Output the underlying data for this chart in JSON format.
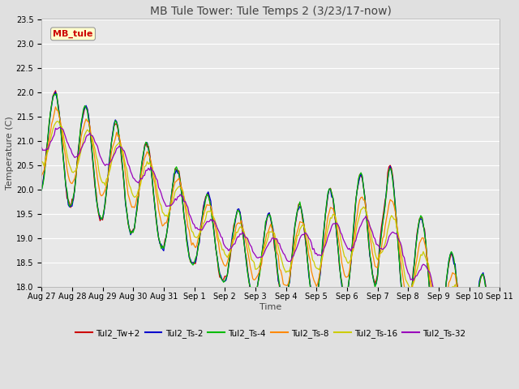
{
  "title": "MB Tule Tower: Tule Temps 2 (3/23/17-now)",
  "xlabel": "Time",
  "ylabel": "Temperature (C)",
  "ylim": [
    18.0,
    23.5
  ],
  "yticks": [
    18.0,
    18.5,
    19.0,
    19.5,
    20.0,
    20.5,
    21.0,
    21.5,
    22.0,
    22.5,
    23.0,
    23.5
  ],
  "series_colors": {
    "Tul2_Tw+2": "#cc0000",
    "Tul2_Ts-2": "#0000cc",
    "Tul2_Ts-4": "#00bb00",
    "Tul2_Ts-8": "#ff8800",
    "Tul2_Ts-16": "#cccc00",
    "Tul2_Ts-32": "#9900bb"
  },
  "watermark_text": "MB_tule",
  "watermark_color": "#cc0000",
  "background_color": "#e0e0e0",
  "plot_bg_color": "#e8e8e8",
  "grid_color": "#ffffff",
  "title_fontsize": 10,
  "axis_fontsize": 8,
  "tick_fontsize": 7
}
